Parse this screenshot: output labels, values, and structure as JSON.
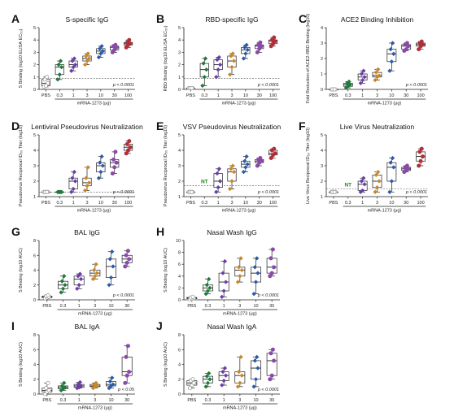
{
  "figure": {
    "dose_axis_label": "mRNA-1273 (μg)",
    "colors": {
      "PBS": "#a0a0a0",
      "0.3": "#1e7a3a",
      "1": "#6a3fa8",
      "3": "#c8872a",
      "10": "#2a5aa8",
      "30": "#8a4aa8",
      "100": "#b0303a"
    }
  },
  "chart_data": [
    {
      "panel_label": "A",
      "type": "box",
      "title": "S-specific IgG",
      "ylabel": "S Binding (log10 ELISA EC₅₀)",
      "ylim": [
        0,
        5
      ],
      "yticks": [
        "0",
        "1",
        "2",
        "3",
        "4",
        "5"
      ],
      "categories": [
        "PBS",
        "0.3",
        "1",
        "3",
        "10",
        "30",
        "100"
      ],
      "values": [
        [
          0.2,
          0.3,
          0.5,
          0.8,
          1.0
        ],
        [
          0.8,
          1.2,
          1.8,
          2.0,
          2.3
        ],
        [
          1.5,
          1.8,
          2.0,
          2.3,
          2.5
        ],
        [
          2.0,
          2.3,
          2.5,
          2.7,
          2.9
        ],
        [
          2.6,
          2.9,
          3.1,
          3.3,
          3.5
        ],
        [
          3.0,
          3.2,
          3.4,
          3.5,
          3.6
        ],
        [
          3.4,
          3.6,
          3.7,
          3.8,
          4.0
        ]
      ],
      "annotation": "p < 0.0001",
      "lod": 0.9
    },
    {
      "panel_label": "B",
      "type": "box",
      "title": "RBD-specific IgG",
      "ylabel": "RBD Binding (log10 ELISA EC₅₀)",
      "ylim": [
        0,
        5
      ],
      "yticks": [
        "0",
        "1",
        "2",
        "3",
        "4",
        "5"
      ],
      "categories": [
        "PBS",
        "0.3",
        "1",
        "3",
        "10",
        "30",
        "100"
      ],
      "values": [
        [
          0.1,
          0.1,
          0.1,
          0.1,
          0.1
        ],
        [
          0.3,
          1.0,
          1.6,
          2.1,
          2.5
        ],
        [
          1.0,
          1.6,
          2.0,
          2.4,
          2.6
        ],
        [
          1.2,
          1.8,
          2.3,
          2.7,
          2.9
        ],
        [
          2.5,
          2.9,
          3.2,
          3.4,
          3.6
        ],
        [
          3.0,
          3.3,
          3.5,
          3.6,
          3.8
        ],
        [
          3.5,
          3.7,
          3.9,
          4.0,
          4.2
        ]
      ],
      "annotation": "p < 0.0001",
      "lod": 0.9
    },
    {
      "panel_label": "C",
      "type": "box",
      "title": "ACE2 Binding Inhibition",
      "ylabel": "Fold Reduction of ACE2-RBD Binding (log10)",
      "ylim": [
        0,
        4
      ],
      "yticks": [
        "0",
        "1",
        "2",
        "3",
        "4"
      ],
      "categories": [
        "PBS",
        "0.3",
        "1",
        "3",
        "10",
        "30",
        "100"
      ],
      "values": [
        [
          0.0,
          0.0,
          0.0,
          0.0,
          0.0
        ],
        [
          0.1,
          0.2,
          0.3,
          0.4,
          0.5
        ],
        [
          0.4,
          0.6,
          0.8,
          1.0,
          1.2
        ],
        [
          0.6,
          0.8,
          0.9,
          1.1,
          1.3
        ],
        [
          1.2,
          1.8,
          2.3,
          2.6,
          3.0
        ],
        [
          2.5,
          2.6,
          2.8,
          2.9,
          3.0
        ],
        [
          2.6,
          2.8,
          2.9,
          3.0,
          3.1
        ]
      ],
      "annotation": "p < 0.0001",
      "lod": null
    },
    {
      "panel_label": "D",
      "type": "box",
      "title": "Lentiviral Pseudovirus Neutralization",
      "ylabel": "Pseudovirus Reciprocal ID₅₀ Titer (log10)",
      "ylim": [
        1,
        5
      ],
      "yticks": [
        "1",
        "2",
        "3",
        "4",
        "5"
      ],
      "categories": [
        "PBS",
        "0.3",
        "1",
        "3",
        "10",
        "30",
        "100"
      ],
      "values": [
        [
          1.3,
          1.3,
          1.3,
          1.3,
          1.3
        ],
        [
          1.3,
          1.3,
          1.3,
          1.3,
          1.3
        ],
        [
          1.3,
          1.5,
          2.0,
          2.2,
          2.6
        ],
        [
          1.4,
          1.7,
          1.9,
          2.2,
          2.9
        ],
        [
          2.2,
          2.6,
          3.0,
          3.2,
          3.6
        ],
        [
          2.5,
          2.9,
          3.2,
          3.4,
          3.9
        ],
        [
          3.8,
          4.0,
          4.2,
          4.4,
          4.6
        ]
      ],
      "annotation": "p < 0.0001",
      "lod": 1.3
    },
    {
      "panel_label": "E",
      "type": "box",
      "title": "VSV Pseudovirus Neutralization",
      "ylabel": "Pseudovirus Reciprocal ID₅₀ Titer (log10)",
      "ylim": [
        1,
        5
      ],
      "yticks": [
        "1",
        "2",
        "3",
        "4",
        "5"
      ],
      "categories": [
        "PBS",
        "0.3",
        "1",
        "3",
        "10",
        "30",
        "100"
      ],
      "values": [
        [
          1.3,
          1.3,
          1.3,
          1.3,
          1.3
        ],
        [],
        [
          1.3,
          1.6,
          2.0,
          2.5,
          2.8
        ],
        [
          1.5,
          2.0,
          2.6,
          2.8,
          3.0
        ],
        [
          2.6,
          2.9,
          3.1,
          3.3,
          3.6
        ],
        [
          3.0,
          3.2,
          3.3,
          3.4,
          3.5
        ],
        [
          3.5,
          3.7,
          3.8,
          4.0,
          4.1
        ]
      ],
      "annotation": "p < 0.0001",
      "lod": 1.7,
      "not_tested": [
        {
          "category": "0.3",
          "label": "NT"
        }
      ]
    },
    {
      "panel_label": "F",
      "type": "box",
      "title": "Live Virus Neutralization",
      "ylabel": "Live Virus Reciprocal ID₅₀ Titer (log10)",
      "ylim": [
        1,
        5
      ],
      "yticks": [
        "1",
        "2",
        "3",
        "4",
        "5"
      ],
      "categories": [
        "PBS",
        "0.3",
        "1",
        "3",
        "10",
        "30",
        "100"
      ],
      "values": [
        [
          1.3,
          1.3,
          1.3,
          1.3,
          1.3
        ],
        [],
        [
          1.3,
          1.4,
          1.8,
          2.0,
          2.2
        ],
        [
          1.3,
          1.6,
          2.0,
          2.4,
          2.6
        ],
        [
          1.3,
          2.0,
          2.9,
          3.2,
          3.5
        ],
        [
          2.6,
          2.7,
          2.8,
          2.9,
          3.0
        ],
        [
          3.0,
          3.3,
          3.6,
          3.9,
          4.1
        ]
      ],
      "annotation": "p < 0.0001",
      "lod": 1.5,
      "not_tested": [
        {
          "category": "0.3",
          "label": "NT"
        }
      ]
    },
    {
      "panel_label": "G",
      "type": "box",
      "title": "BAL IgG",
      "ylabel": "S Binding (log10 AUC)",
      "ylim": [
        0,
        8
      ],
      "yticks": [
        "0",
        "2",
        "4",
        "6",
        "8"
      ],
      "categories": [
        "PBS",
        "0.3",
        "1",
        "3",
        "10",
        "30"
      ],
      "values": [
        [
          0.2,
          0.3,
          0.4,
          0.5,
          0.6
        ],
        [
          1.0,
          1.5,
          2.0,
          2.5,
          3.2
        ],
        [
          1.5,
          2.0,
          2.8,
          3.2,
          3.5
        ],
        [
          2.8,
          3.2,
          3.6,
          4.0,
          4.8
        ],
        [
          2.0,
          3.0,
          4.5,
          5.5,
          6.5
        ],
        [
          4.5,
          5.0,
          5.5,
          6.0,
          6.6
        ]
      ],
      "annotation": "p < 0.0001",
      "lod": null
    },
    {
      "panel_label": "H",
      "type": "box",
      "title": "Nasal Wash IgG",
      "ylabel": "S Binding (log10 AUC)",
      "ylim": [
        0,
        10
      ],
      "yticks": [
        "0",
        "2",
        "4",
        "6",
        "8",
        "10"
      ],
      "categories": [
        "PBS",
        "0.3",
        "1",
        "3",
        "10",
        "30"
      ],
      "values": [
        [
          0.1,
          0.2,
          0.3,
          0.4,
          0.5
        ],
        [
          1.0,
          1.5,
          2.0,
          2.5,
          3.5
        ],
        [
          0.5,
          1.5,
          3.0,
          4.5,
          6.5
        ],
        [
          3.0,
          4.0,
          5.0,
          5.5,
          7.0
        ],
        [
          1.0,
          3.0,
          4.5,
          5.5,
          7.0
        ],
        [
          4.0,
          4.5,
          5.5,
          7.0,
          8.5
        ]
      ],
      "annotation": "p < 0.0001",
      "lod": null
    },
    {
      "panel_label": "I",
      "type": "box",
      "title": "BAL IgA",
      "ylabel": "S Binding (log10 AUC)",
      "ylim": [
        0,
        8
      ],
      "yticks": [
        "0",
        "2",
        "4",
        "6",
        "8"
      ],
      "categories": [
        "PBS",
        "0.3",
        "1",
        "3",
        "10",
        "30"
      ],
      "values": [
        [
          0.0,
          0.3,
          0.5,
          0.8,
          1.5
        ],
        [
          0.5,
          0.7,
          0.9,
          1.1,
          1.5
        ],
        [
          0.8,
          0.9,
          1.1,
          1.3,
          1.6
        ],
        [
          0.8,
          1.0,
          1.1,
          1.3,
          1.5
        ],
        [
          0.8,
          1.1,
          1.3,
          1.7,
          2.2
        ],
        [
          1.5,
          2.5,
          3.0,
          5.0,
          6.5
        ]
      ],
      "annotation": "p < 0.05",
      "lod": null
    },
    {
      "panel_label": "J",
      "type": "box",
      "title": "Nasal Wash IgA",
      "ylabel": "S Binding (log10 AUC)",
      "ylim": [
        0,
        8
      ],
      "yticks": [
        "0",
        "2",
        "4",
        "6",
        "8"
      ],
      "categories": [
        "PBS",
        "0.3",
        "1",
        "3",
        "10",
        "30"
      ],
      "values": [
        [
          0.8,
          1.2,
          1.5,
          1.8,
          2.0
        ],
        [
          1.0,
          1.5,
          2.0,
          2.4,
          2.8
        ],
        [
          1.2,
          1.8,
          2.5,
          3.0,
          3.5
        ],
        [
          1.0,
          1.5,
          2.5,
          3.0,
          5.0
        ],
        [
          1.0,
          2.0,
          3.5,
          4.5,
          5.0
        ],
        [
          2.0,
          2.5,
          4.5,
          5.5,
          6.0
        ]
      ],
      "annotation": "p < 0.0001",
      "lod": null
    }
  ]
}
